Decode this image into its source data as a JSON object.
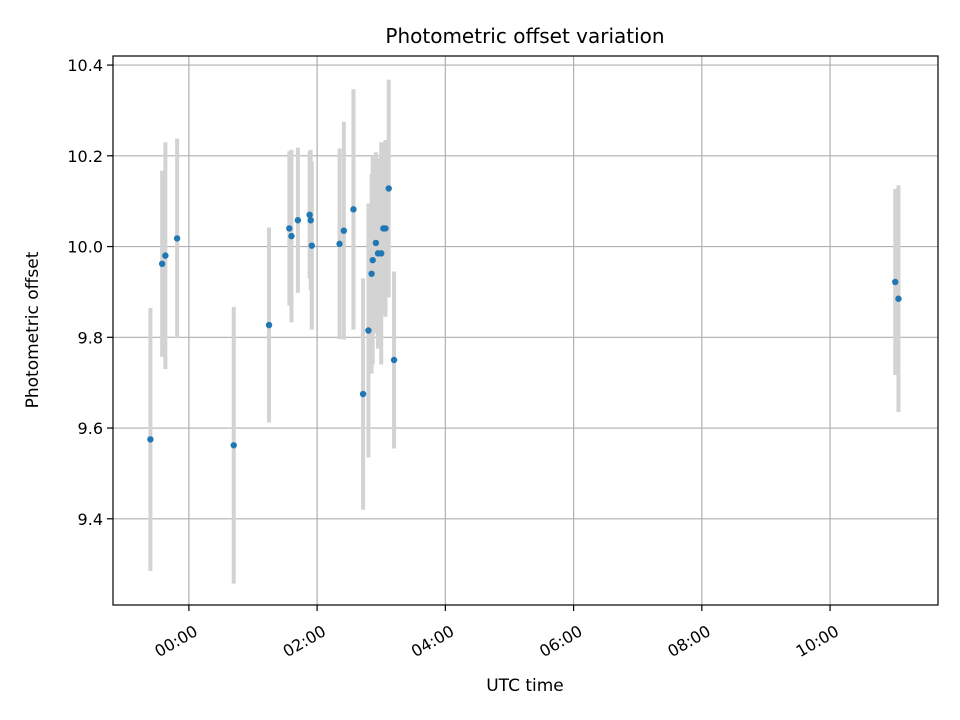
{
  "chart_data": {
    "type": "scatter",
    "title": "Photometric offset variation",
    "xlabel": "UTC time",
    "ylabel": "Photometric offset",
    "xlim": [
      "-01:11",
      "11:41"
    ],
    "ylim": [
      9.21,
      10.42
    ],
    "grid": true,
    "x_ticks": [
      "00:00",
      "02:00",
      "04:00",
      "06:00",
      "08:00",
      "10:00"
    ],
    "y_ticks": [
      9.4,
      9.6,
      9.8,
      10.0,
      10.2,
      10.4
    ],
    "y_tick_labels": [
      "9.4",
      "9.6",
      "9.8",
      "10.0",
      "10.2",
      "10.4"
    ],
    "series": [
      {
        "color": "#1f77b4",
        "error_color": "#d3d3d3",
        "points": [
          {
            "x": "-00:36",
            "y": 9.575,
            "err": 0.29
          },
          {
            "x": "-00:25",
            "y": 9.962,
            "err": 0.205
          },
          {
            "x": "-00:22",
            "y": 9.98,
            "err": 0.25
          },
          {
            "x": "-00:11",
            "y": 10.018,
            "err": 0.22
          },
          {
            "x": "00:42",
            "y": 9.562,
            "err": 0.305
          },
          {
            "x": "01:15",
            "y": 9.827,
            "err": 0.215
          },
          {
            "x": "01:34",
            "y": 10.04,
            "err": 0.17
          },
          {
            "x": "01:36",
            "y": 10.023,
            "err": 0.19
          },
          {
            "x": "01:42",
            "y": 10.058,
            "err": 0.16
          },
          {
            "x": "01:53",
            "y": 10.07,
            "err": 0.14
          },
          {
            "x": "01:54",
            "y": 10.058,
            "err": 0.155
          },
          {
            "x": "01:55",
            "y": 10.002,
            "err": 0.185
          },
          {
            "x": "02:21",
            "y": 10.006,
            "err": 0.21
          },
          {
            "x": "02:25",
            "y": 10.035,
            "err": 0.24
          },
          {
            "x": "02:34",
            "y": 10.082,
            "err": 0.265
          },
          {
            "x": "02:43",
            "y": 9.675,
            "err": 0.255
          },
          {
            "x": "02:48",
            "y": 9.815,
            "err": 0.28
          },
          {
            "x": "02:51",
            "y": 9.94,
            "err": 0.22
          },
          {
            "x": "02:52",
            "y": 9.97,
            "err": 0.23
          },
          {
            "x": "02:55",
            "y": 10.008,
            "err": 0.2
          },
          {
            "x": "02:57",
            "y": 9.985,
            "err": 0.21
          },
          {
            "x": "03:00",
            "y": 9.985,
            "err": 0.245
          },
          {
            "x": "03:02",
            "y": 10.04,
            "err": 0.19
          },
          {
            "x": "03:04",
            "y": 10.04,
            "err": 0.195
          },
          {
            "x": "03:07",
            "y": 10.128,
            "err": 0.24
          },
          {
            "x": "03:12",
            "y": 9.75,
            "err": 0.195
          },
          {
            "x": "11:01",
            "y": 9.922,
            "err": 0.205
          },
          {
            "x": "11:04",
            "y": 9.885,
            "err": 0.25
          }
        ]
      }
    ]
  }
}
